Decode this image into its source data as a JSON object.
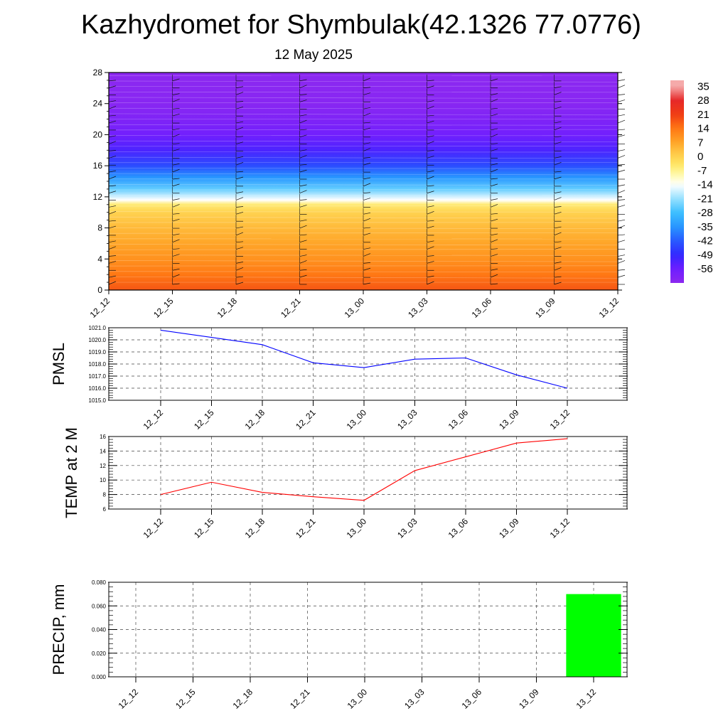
{
  "title": "Kazhydromet for Shymbulak(42.1326 77.0776)",
  "subtitle": "12 May 2025",
  "time_labels": [
    "12_12",
    "12_15",
    "12_18",
    "12_21",
    "13_00",
    "13_03",
    "13_06",
    "13_09",
    "13_12"
  ],
  "colorbar": {
    "labels": [
      "35",
      "28",
      "21",
      "14",
      "7",
      "0",
      "-7",
      "-14",
      "-21",
      "-28",
      "-35",
      "-42",
      "-49",
      "-56"
    ]
  },
  "chart_data": [
    {
      "type": "heatmap",
      "x": [
        "12_12",
        "12_15",
        "12_18",
        "12_21",
        "13_00",
        "13_03",
        "13_06",
        "13_09",
        "13_12"
      ],
      "ylim": [
        0,
        28
      ],
      "yticks": [
        "0",
        "4",
        "8",
        "12",
        "16",
        "20",
        "24",
        "28"
      ],
      "color_range": [
        -63,
        35
      ],
      "profile": [
        {
          "y": 0,
          "value": 18
        },
        {
          "y": 2,
          "value": 14
        },
        {
          "y": 4,
          "value": 10
        },
        {
          "y": 6,
          "value": 7
        },
        {
          "y": 8,
          "value": 4
        },
        {
          "y": 10,
          "value": 0
        },
        {
          "y": 11,
          "value": -5
        },
        {
          "y": 11.6,
          "value": -14
        },
        {
          "y": 13,
          "value": -25
        },
        {
          "y": 14.5,
          "value": -35
        },
        {
          "y": 16,
          "value": -44
        },
        {
          "y": 18,
          "value": -52
        },
        {
          "y": 20,
          "value": -57
        },
        {
          "y": 22,
          "value": -60
        },
        {
          "y": 24,
          "value": -62
        },
        {
          "y": 28,
          "value": -63
        }
      ]
    },
    {
      "type": "line",
      "ylabel": "PMSL",
      "x": [
        "12_12",
        "12_15",
        "12_18",
        "12_21",
        "13_00",
        "13_03",
        "13_06",
        "13_09",
        "13_12"
      ],
      "values": [
        1020.8,
        1020.2,
        1019.6,
        1018.1,
        1017.7,
        1018.4,
        1018.5,
        1017.1,
        1016.0
      ],
      "ylim": [
        1015,
        1021
      ],
      "yticks": [
        "1015.0",
        "1016.0",
        "1017.0",
        "1018.0",
        "1019.0",
        "1020.0",
        "1021.0"
      ],
      "color": "#0000ff",
      "grid": true
    },
    {
      "type": "line",
      "ylabel": "TEMP at 2 M",
      "x": [
        "12_12",
        "12_15",
        "12_18",
        "12_21",
        "13_00",
        "13_03",
        "13_06",
        "13_09",
        "13_12"
      ],
      "values": [
        8.0,
        9.7,
        8.3,
        7.7,
        7.2,
        11.3,
        13.2,
        15.1,
        15.7
      ],
      "ylim": [
        6,
        16
      ],
      "yticks": [
        "6",
        "8",
        "10",
        "12",
        "14",
        "16"
      ],
      "color": "#ff0000",
      "grid": true
    },
    {
      "type": "bar",
      "ylabel": "PRECIP, mm",
      "categories": [
        "12_12",
        "12_15",
        "12_18",
        "12_21",
        "13_00",
        "13_03",
        "13_06",
        "13_09",
        "13_12"
      ],
      "values": [
        0,
        0,
        0,
        0,
        0,
        0,
        0,
        0,
        0.07
      ],
      "ylim": [
        0,
        0.08
      ],
      "yticks": [
        "0.000",
        "0.020",
        "0.040",
        "0.060",
        "0.080"
      ],
      "color": "#00ff00",
      "grid": true
    }
  ]
}
